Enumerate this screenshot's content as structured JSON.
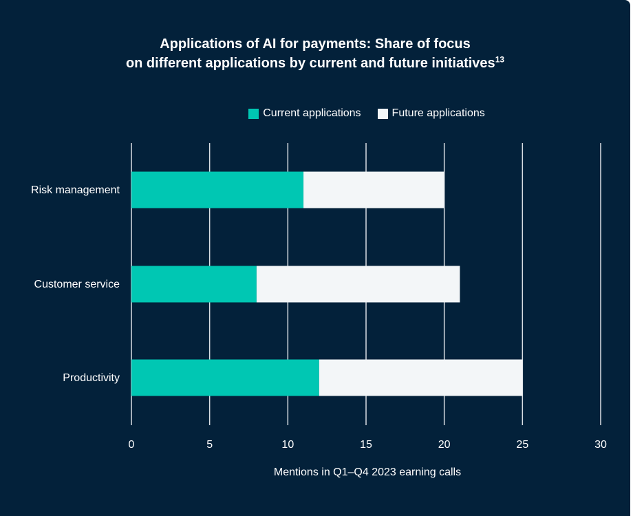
{
  "chart_data": {
    "type": "bar",
    "orientation": "horizontal",
    "stacked": true,
    "title_line1": "Applications of AI for payments: Share of focus",
    "title_line2": "on different applications by current and future initiatives",
    "title_superscript": "13",
    "xlabel": "Mentions in Q1–Q4 2023 earning calls",
    "ylabel": "",
    "categories": [
      "Risk management",
      "Customer service",
      "Productivity"
    ],
    "series": [
      {
        "name": "Current applications",
        "color": "#00c7b3",
        "values": [
          11,
          8,
          12
        ]
      },
      {
        "name": "Future applications",
        "color": "#f3f6f8",
        "values": [
          9,
          13,
          13
        ]
      }
    ],
    "xlim": [
      0,
      30
    ],
    "xticks": [
      0,
      5,
      10,
      15,
      20,
      25,
      30
    ],
    "grid": true,
    "legend_position": "top"
  },
  "colors": {
    "background": "#03213a",
    "gridline": "#d9dee3",
    "text": "#ffffff"
  }
}
